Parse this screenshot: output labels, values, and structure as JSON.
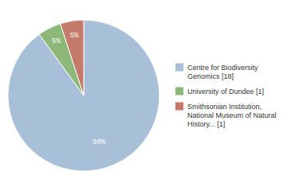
{
  "chart_data": {
    "type": "pie",
    "categories": [
      "Centre for Biodiversity\nGenomics [18]",
      "University of Dundee [1]",
      "Smithsonian Institution,\nNational Museum of Natural\nHistory... [1]"
    ],
    "values": [
      90,
      5,
      5
    ],
    "value_labels": [
      "90%",
      "5%",
      "5%"
    ],
    "colors": [
      "#a8bfd8",
      "#8db87a",
      "#c47b6a"
    ],
    "data_labels": true,
    "legend": "right"
  }
}
